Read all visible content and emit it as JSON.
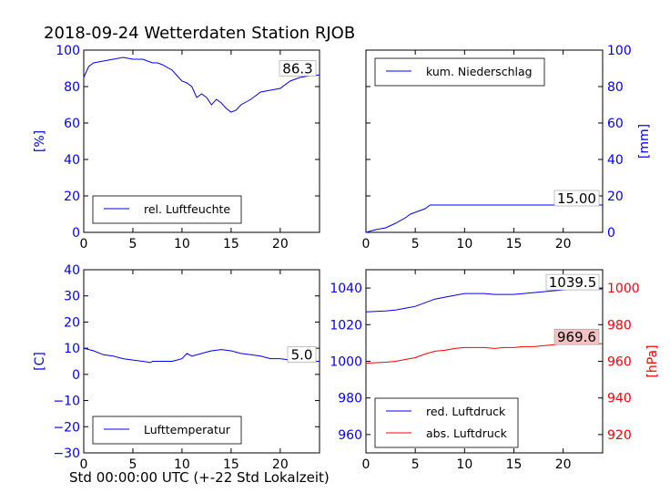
{
  "figure": {
    "title": "2018-09-24 Wetterdaten Station RJOB",
    "xcaption": "Std 00:00:00 UTC (+-22 Std Lokalzeit)"
  },
  "colors": {
    "blue": "#0000ff",
    "red": "#ff0000",
    "axis_blue": "#0000ff"
  },
  "chart_data": [
    {
      "type": "line",
      "panel": "top-left",
      "ylabel": "[%]",
      "xlim": [
        0,
        24
      ],
      "ylim": [
        0,
        100
      ],
      "xticks": [
        0,
        5,
        10,
        15,
        20
      ],
      "yticks": [
        0,
        20,
        40,
        60,
        80,
        100
      ],
      "legend_position": "lower-left",
      "annotation": "86.3",
      "series": [
        {
          "name": "rel. Luftfeuchte",
          "color": "#0000ff",
          "x": [
            0,
            0.5,
            1,
            2,
            3,
            4,
            5,
            6,
            7,
            7.5,
            8,
            9,
            9.5,
            10,
            10.5,
            11,
            11.5,
            12,
            12.5,
            13,
            13.5,
            14,
            14.5,
            15,
            15.5,
            16,
            17,
            18,
            19,
            20,
            21,
            22,
            23,
            24
          ],
          "y": [
            85,
            91,
            93,
            94,
            95,
            96,
            95,
            95,
            93,
            93,
            92,
            89,
            86,
            83,
            82,
            80,
            74,
            76,
            74,
            70,
            73,
            71,
            68,
            66,
            67,
            70,
            73,
            77,
            78,
            79,
            83,
            85,
            86,
            86.3
          ]
        }
      ]
    },
    {
      "type": "line",
      "panel": "top-right",
      "ylabel": "[mm]",
      "xlim": [
        0,
        24
      ],
      "ylim": [
        0,
        100
      ],
      "xticks": [
        0,
        5,
        10,
        15,
        20
      ],
      "yticks": [
        0,
        20,
        40,
        60,
        80,
        100
      ],
      "legend_position": "top-left",
      "annotation": "15.00",
      "series": [
        {
          "name": "kum. Niederschlag",
          "color": "#0000ff",
          "x": [
            0,
            0.3,
            1,
            2,
            3,
            4,
            4.5,
            5,
            5.5,
            6,
            6.5,
            7,
            10,
            15,
            20,
            24
          ],
          "y": [
            0,
            0.5,
            1.5,
            2.5,
            5,
            8,
            10,
            11,
            12,
            13,
            15,
            15,
            15,
            15,
            15,
            15
          ]
        }
      ]
    },
    {
      "type": "line",
      "panel": "bottom-left",
      "ylabel": "[C]",
      "xlim": [
        0,
        24
      ],
      "ylim": [
        -30,
        40
      ],
      "xticks": [
        0,
        5,
        10,
        15,
        20
      ],
      "yticks": [
        -30,
        -20,
        -10,
        0,
        10,
        20,
        30,
        40
      ],
      "legend_position": "lower-left",
      "annotation": "5.0",
      "series": [
        {
          "name": "Lufttemperatur",
          "color": "#0000ff",
          "x": [
            0,
            1,
            2,
            3,
            4,
            5,
            6,
            6.8,
            7,
            8,
            9,
            9.5,
            10,
            10.5,
            11,
            12,
            13,
            14,
            15,
            16,
            17,
            18,
            19,
            20,
            21,
            22,
            23,
            24
          ],
          "y": [
            10,
            9,
            7.5,
            7,
            6,
            5.5,
            5,
            4.5,
            5,
            5,
            5,
            5.5,
            6,
            8,
            7,
            8,
            9,
            9.5,
            9,
            8,
            7.5,
            7,
            6,
            6,
            5.5,
            5,
            5,
            5
          ]
        }
      ]
    },
    {
      "type": "line",
      "panel": "bottom-right",
      "ylabel": "[hPa]",
      "xlim": [
        0,
        24
      ],
      "ylim_left": [
        950,
        1050
      ],
      "yticks_left": [
        960,
        980,
        1000,
        1020,
        1040
      ],
      "ylim_right": [
        910,
        1010
      ],
      "yticks_right": [
        920,
        940,
        960,
        980,
        1000
      ],
      "xticks": [
        0,
        5,
        10,
        15,
        20
      ],
      "legend_position": "lower-left",
      "annotations": [
        "1039.5",
        "969.6"
      ],
      "series": [
        {
          "name": "red. Luftdruck",
          "color": "#0000ff",
          "axis": "left",
          "x": [
            0,
            2,
            3,
            4,
            5,
            6,
            7,
            8,
            9,
            10,
            11,
            12,
            13,
            14,
            15,
            16,
            17,
            18,
            19,
            20,
            21,
            22,
            23,
            24
          ],
          "y": [
            1027,
            1027.5,
            1028,
            1029,
            1030,
            1032,
            1034,
            1035,
            1036,
            1037,
            1037,
            1037,
            1036.5,
            1036.5,
            1036.5,
            1037,
            1037.5,
            1038,
            1038.5,
            1039,
            1039.5,
            1039.5,
            1039.5,
            1039.5
          ]
        },
        {
          "name": "abs. Luftdruck",
          "color": "#ff0000",
          "axis": "right",
          "x": [
            0,
            2,
            3,
            4,
            5,
            6,
            7,
            8,
            9,
            10,
            11,
            12,
            13,
            14,
            15,
            16,
            17,
            18,
            19,
            20,
            21,
            22,
            23,
            24
          ],
          "y": [
            959,
            959.5,
            960,
            961,
            962,
            964,
            965.5,
            966,
            967,
            967.5,
            967.5,
            967.5,
            967,
            967.5,
            967.5,
            968,
            968,
            968.5,
            969,
            969.5,
            969.6,
            969.6,
            969.6,
            969.6
          ]
        }
      ]
    }
  ]
}
